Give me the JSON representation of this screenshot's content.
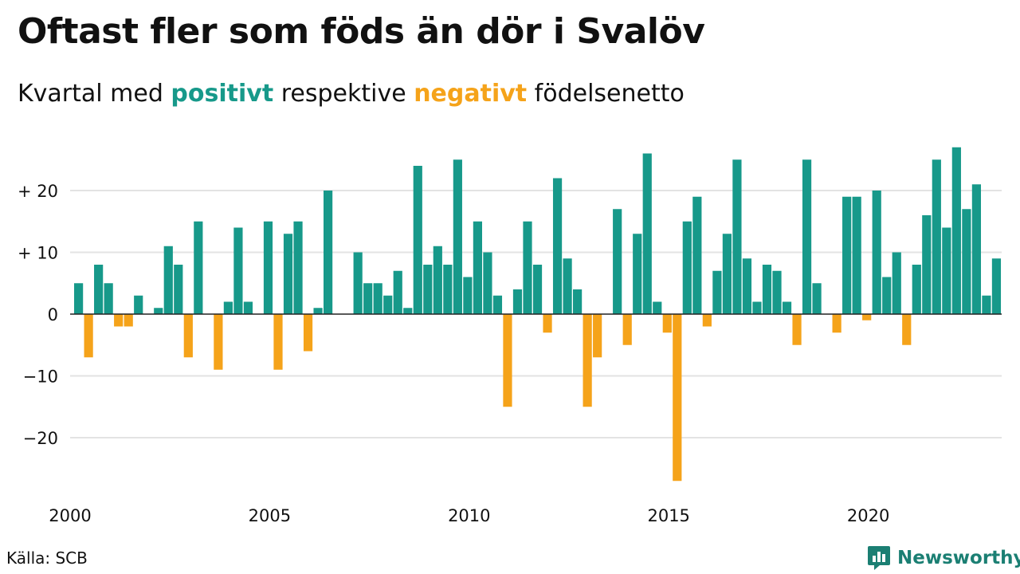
{
  "title": "Oftast fler som föds än dör i Svalöv",
  "subtitle": {
    "prefix": "Kvartal med ",
    "positive_word": "positivt",
    "middle": " respektive ",
    "negative_word": "negativt",
    "suffix": " födelsenetto"
  },
  "source": "Källa: SCB",
  "brand": "Newsworthy",
  "colors": {
    "positive": "#17998a",
    "negative": "#f5a31a",
    "grid": "#e3e3e3",
    "zero_line": "#222222",
    "text": "#111111",
    "brand": "#1b7f73"
  },
  "chart_data": {
    "type": "bar",
    "x_unit": "quarter",
    "start": "2000 Q1",
    "xticks": [
      "2000",
      "2005",
      "2010",
      "2015",
      "2020"
    ],
    "yticks": [
      {
        "value": 20,
        "label": "+ 20"
      },
      {
        "value": 10,
        "label": "+ 10"
      },
      {
        "value": 0,
        "label": "0"
      },
      {
        "value": -10,
        "label": "−10"
      },
      {
        "value": -20,
        "label": "−20"
      }
    ],
    "ylim": [
      -28,
      28
    ],
    "grid": true,
    "values": [
      5,
      -7,
      8,
      5,
      -2,
      -2,
      3,
      0,
      1,
      11,
      8,
      -7,
      15,
      0,
      -9,
      2,
      14,
      2,
      0,
      15,
      -9,
      13,
      15,
      -6,
      1,
      20,
      0,
      0,
      10,
      5,
      5,
      3,
      7,
      1,
      24,
      8,
      11,
      8,
      25,
      6,
      15,
      10,
      3,
      -15,
      4,
      15,
      8,
      -3,
      22,
      9,
      4,
      -15,
      -7,
      0,
      17,
      -5,
      13,
      26,
      2,
      -3,
      -27,
      15,
      19,
      -2,
      7,
      13,
      25,
      9,
      2,
      8,
      7,
      2,
      -5,
      25,
      5,
      0,
      -3,
      19,
      19,
      -1,
      20,
      6,
      10,
      -5,
      8,
      16,
      25,
      14,
      27,
      17,
      21,
      3,
      9
    ]
  }
}
